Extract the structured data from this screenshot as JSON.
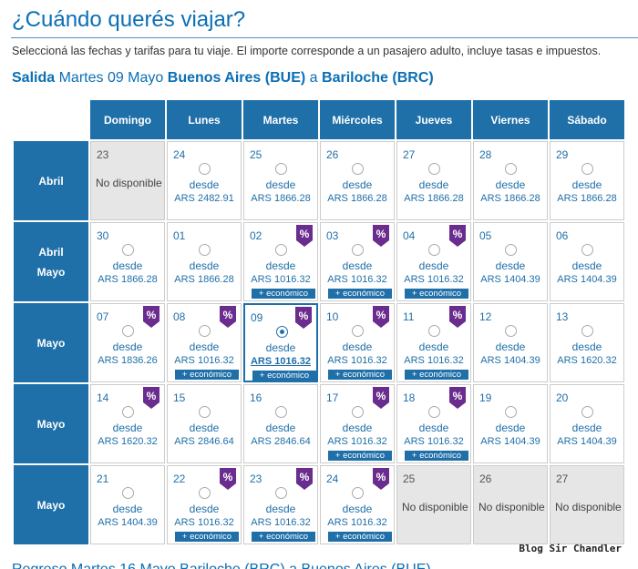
{
  "header": {
    "title": "¿Cuándo querés viajar?",
    "subtitle": "Seleccioná las fechas y tarifas para tu viaje. El importe corresponde a un pasajero adulto, incluye tasas e impuestos."
  },
  "route": {
    "label": "Salida",
    "date": "Martes 09 Mayo",
    "origin": "Buenos Aires (BUE)",
    "connector": "a",
    "destination": "Bariloche (BRC)"
  },
  "calendar": {
    "days": [
      "Domingo",
      "Lunes",
      "Martes",
      "Miércoles",
      "Jueves",
      "Viernes",
      "Sábado"
    ],
    "desde_label": "desde",
    "na_label": "No disponible",
    "eco_label": "+ económico",
    "weeks": [
      {
        "label": [
          "Abril"
        ],
        "cells": [
          {
            "day": "23",
            "na": true
          },
          {
            "day": "24",
            "price": "ARS 2482.91"
          },
          {
            "day": "25",
            "price": "ARS 1866.28"
          },
          {
            "day": "26",
            "price": "ARS 1866.28"
          },
          {
            "day": "27",
            "price": "ARS 1866.28"
          },
          {
            "day": "28",
            "price": "ARS 1866.28"
          },
          {
            "day": "29",
            "price": "ARS 1866.28"
          }
        ]
      },
      {
        "label": [
          "Abril",
          "Mayo"
        ],
        "cells": [
          {
            "day": "30",
            "price": "ARS 1866.28"
          },
          {
            "day": "01",
            "price": "ARS 1866.28"
          },
          {
            "day": "02",
            "price": "ARS 1016.32",
            "promo": true,
            "eco": true
          },
          {
            "day": "03",
            "price": "ARS 1016.32",
            "promo": true,
            "eco": true
          },
          {
            "day": "04",
            "price": "ARS 1016.32",
            "promo": true,
            "eco": true
          },
          {
            "day": "05",
            "price": "ARS 1404.39"
          },
          {
            "day": "06",
            "price": "ARS 1404.39"
          }
        ]
      },
      {
        "label": [
          "Mayo"
        ],
        "cells": [
          {
            "day": "07",
            "price": "ARS 1836.26",
            "promo": true
          },
          {
            "day": "08",
            "price": "ARS 1016.32",
            "promo": true,
            "eco": true
          },
          {
            "day": "09",
            "price": "ARS 1016.32",
            "promo": true,
            "eco": true,
            "selected": true
          },
          {
            "day": "10",
            "price": "ARS 1016.32",
            "promo": true,
            "eco": true
          },
          {
            "day": "11",
            "price": "ARS 1016.32",
            "promo": true,
            "eco": true
          },
          {
            "day": "12",
            "price": "ARS 1404.39"
          },
          {
            "day": "13",
            "price": "ARS 1620.32"
          }
        ]
      },
      {
        "label": [
          "Mayo"
        ],
        "cells": [
          {
            "day": "14",
            "price": "ARS 1620.32",
            "promo": true
          },
          {
            "day": "15",
            "price": "ARS 2846.64"
          },
          {
            "day": "16",
            "price": "ARS 2846.64"
          },
          {
            "day": "17",
            "price": "ARS 1016.32",
            "promo": true,
            "eco": true
          },
          {
            "day": "18",
            "price": "ARS 1016.32",
            "promo": true,
            "eco": true
          },
          {
            "day": "19",
            "price": "ARS 1404.39"
          },
          {
            "day": "20",
            "price": "ARS 1404.39"
          }
        ]
      },
      {
        "label": [
          "Mayo"
        ],
        "cells": [
          {
            "day": "21",
            "price": "ARS 1404.39"
          },
          {
            "day": "22",
            "price": "ARS 1016.32",
            "promo": true,
            "eco": true
          },
          {
            "day": "23",
            "price": "ARS 1016.32",
            "promo": true,
            "eco": true
          },
          {
            "day": "24",
            "price": "ARS 1016.32",
            "promo": true,
            "eco": true
          },
          {
            "day": "25",
            "na": true
          },
          {
            "day": "26",
            "na": true
          },
          {
            "day": "27",
            "na": true
          }
        ]
      }
    ]
  },
  "next_section_partial": "Regreso  Martes 16 Mayo  Bariloche (BRC)  a  Buenos Aires (BUE)",
  "watermark": "Blog Sir Chandler",
  "colors": {
    "accent": "#1f6fa8",
    "title": "#0a6fb5",
    "promo_badge": "#6a2c8e",
    "unavailable": "#e6e6e6"
  }
}
